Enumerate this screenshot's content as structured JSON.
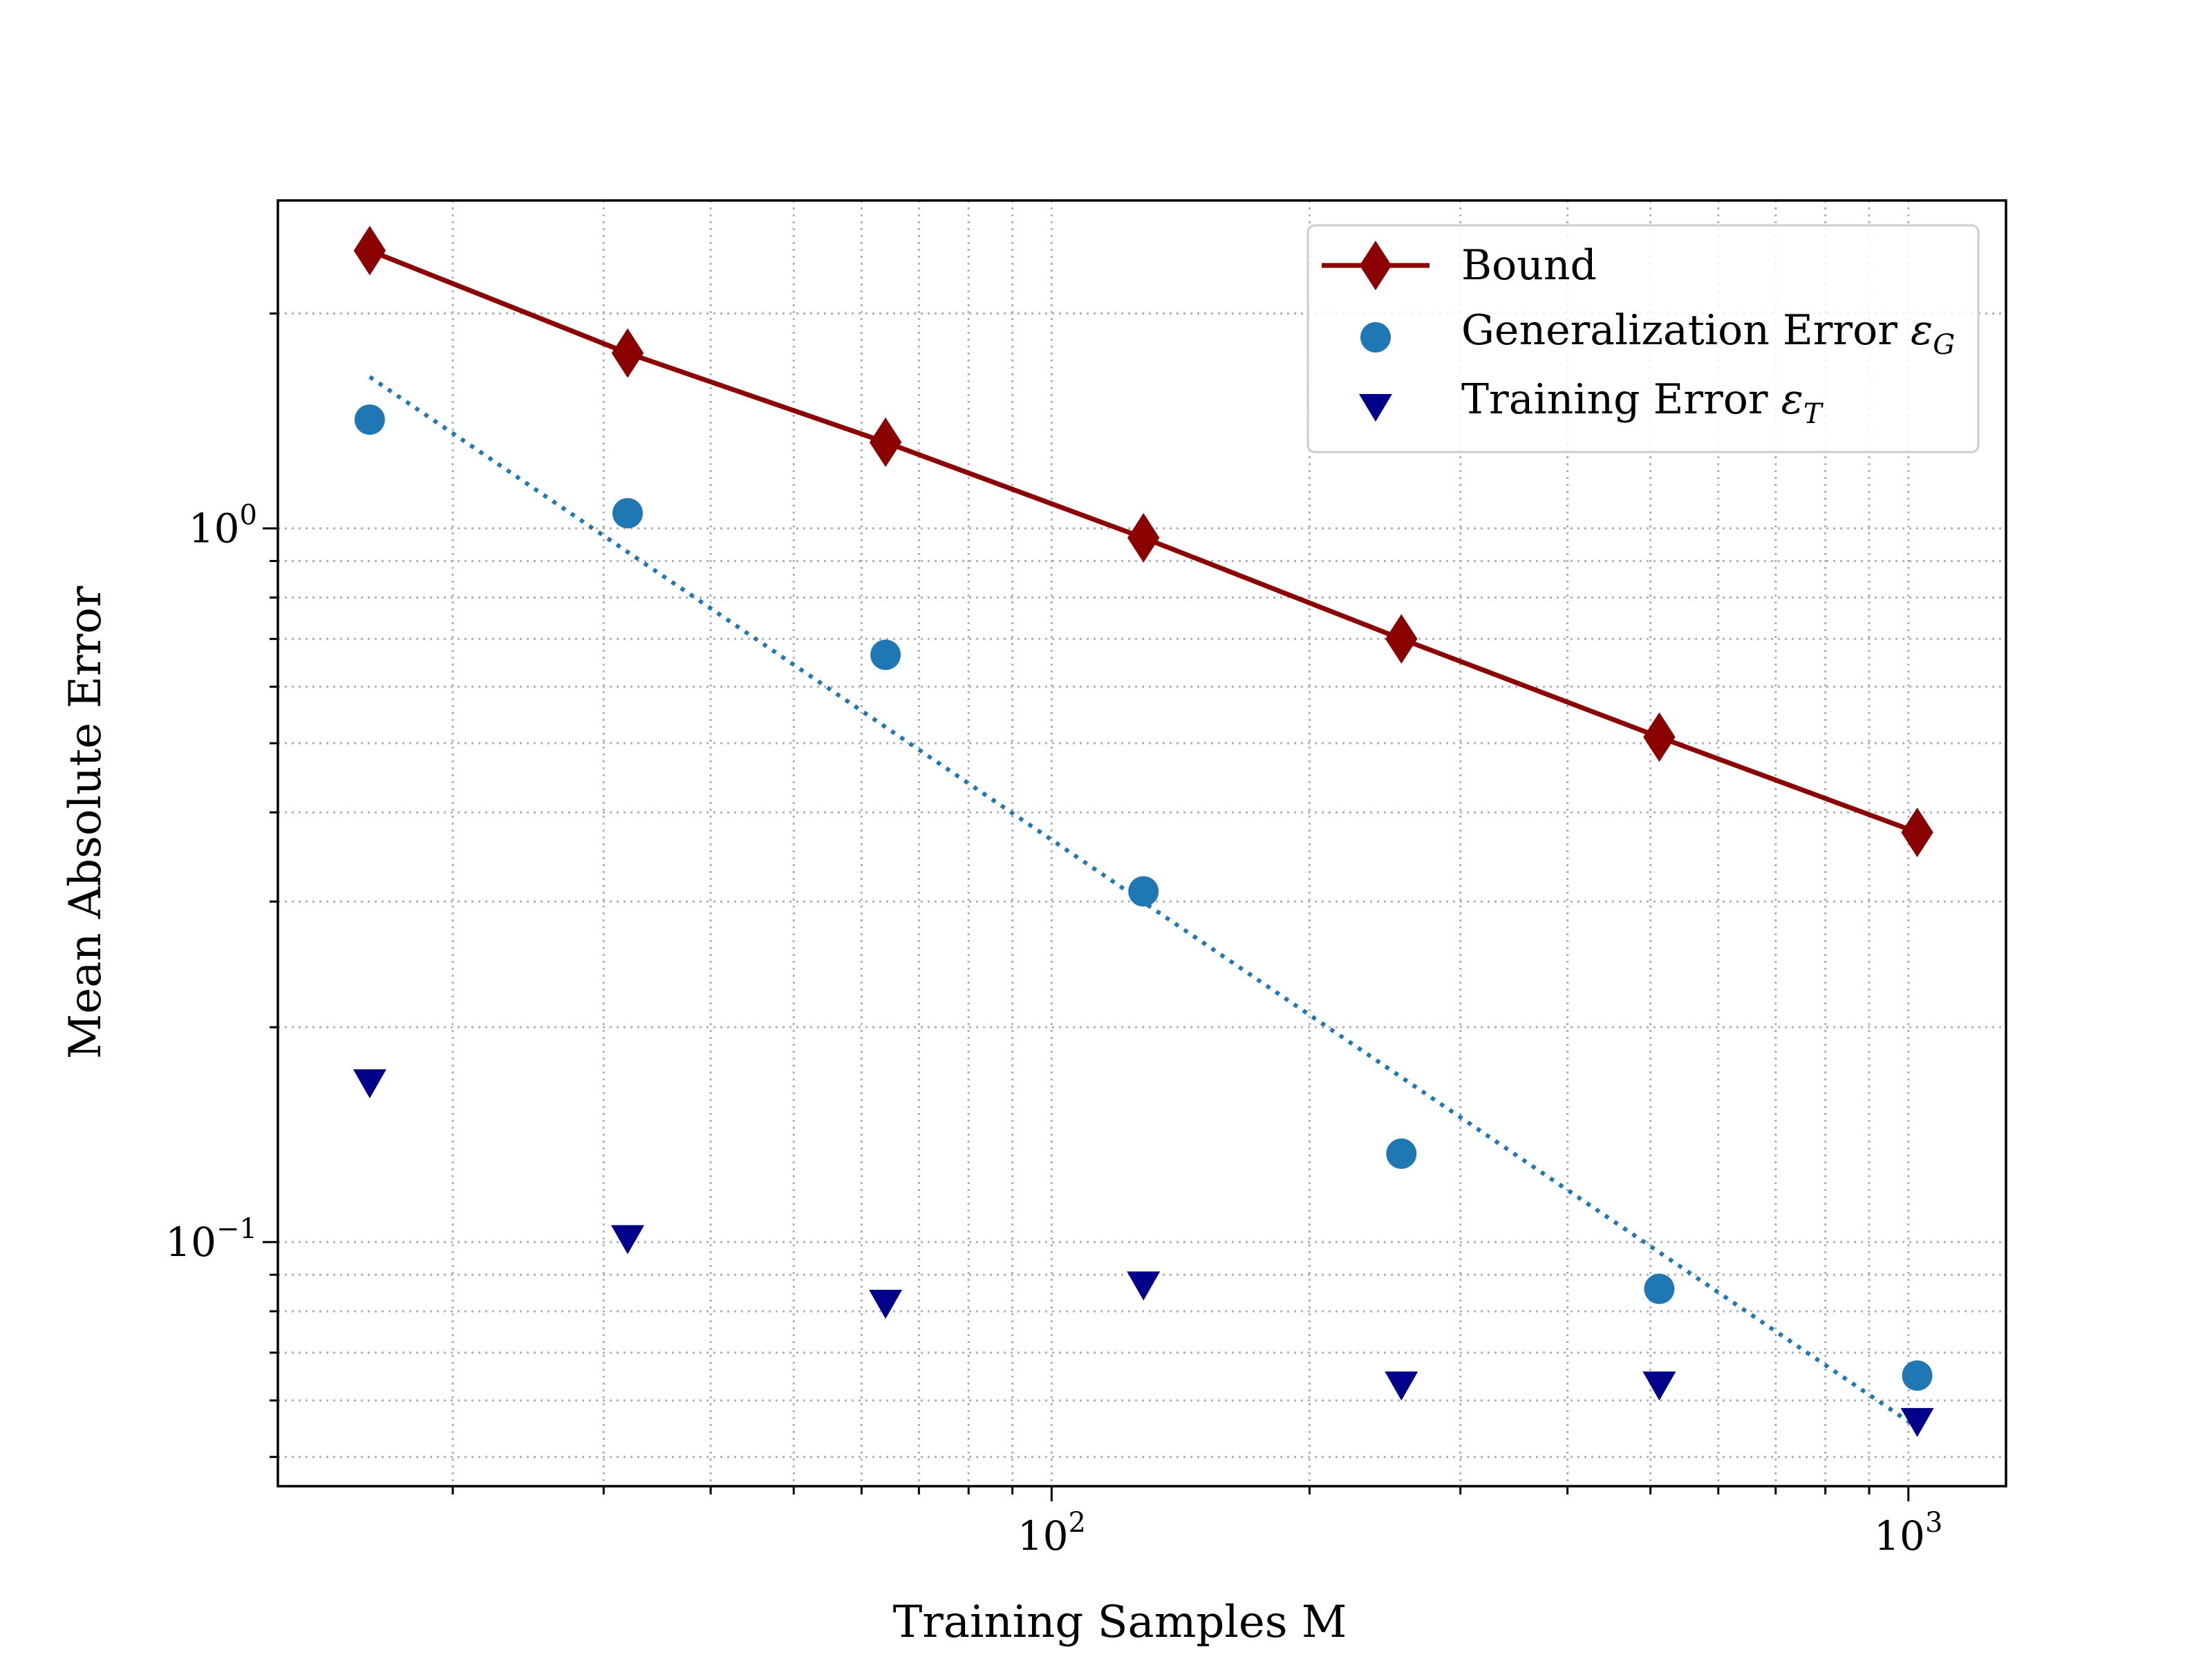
{
  "chart_data": {
    "type": "scatter",
    "title": "",
    "xlabel": "Training Samples M",
    "ylabel": "Mean Absolute Error",
    "xscale": "log",
    "yscale": "log",
    "xlim": [
      12.5,
      1300
    ],
    "ylim": [
      0.0455,
      2.88
    ],
    "grid": "both (major and minor), dotted",
    "legend_position": "upper right",
    "x_ticks": [
      {
        "value": 100,
        "base": "10",
        "exp": "2"
      },
      {
        "value": 1000,
        "base": "10",
        "exp": "3"
      }
    ],
    "y_ticks": [
      {
        "value": 1,
        "base": "10",
        "exp": "0"
      },
      {
        "value": 0.1,
        "base": "10",
        "exp": "−1"
      }
    ],
    "x": [
      16,
      32,
      64,
      128,
      256,
      512,
      1024
    ],
    "series": [
      {
        "name": "Bound",
        "style": "line+diamond",
        "color": "#8b0000",
        "values": [
          2.45,
          1.76,
          1.32,
          0.97,
          0.7,
          0.51,
          0.375
        ]
      },
      {
        "name": "Generalization Error ε_G",
        "style": "circle",
        "color": "#1f77b4",
        "values": [
          1.42,
          1.05,
          0.665,
          0.31,
          0.133,
          0.086,
          0.065
        ]
      },
      {
        "name": "Training Error ε_T",
        "style": "triangle-down",
        "color": "#00008b",
        "values": [
          0.167,
          0.101,
          0.082,
          0.087,
          0.063,
          0.063,
          0.056
        ]
      }
    ],
    "fit_line": {
      "style": "dotted",
      "color": "#1f77b4",
      "x": [
        16,
        1024
      ],
      "values": [
        1.63,
        0.055
      ]
    },
    "legend": {
      "bound": {
        "label": "Bound"
      },
      "gen": {
        "label": "Generalization Error ",
        "symbol": "ε",
        "sub": "G"
      },
      "train": {
        "label": "Training Error ",
        "symbol": "ε",
        "sub": "T"
      }
    }
  }
}
